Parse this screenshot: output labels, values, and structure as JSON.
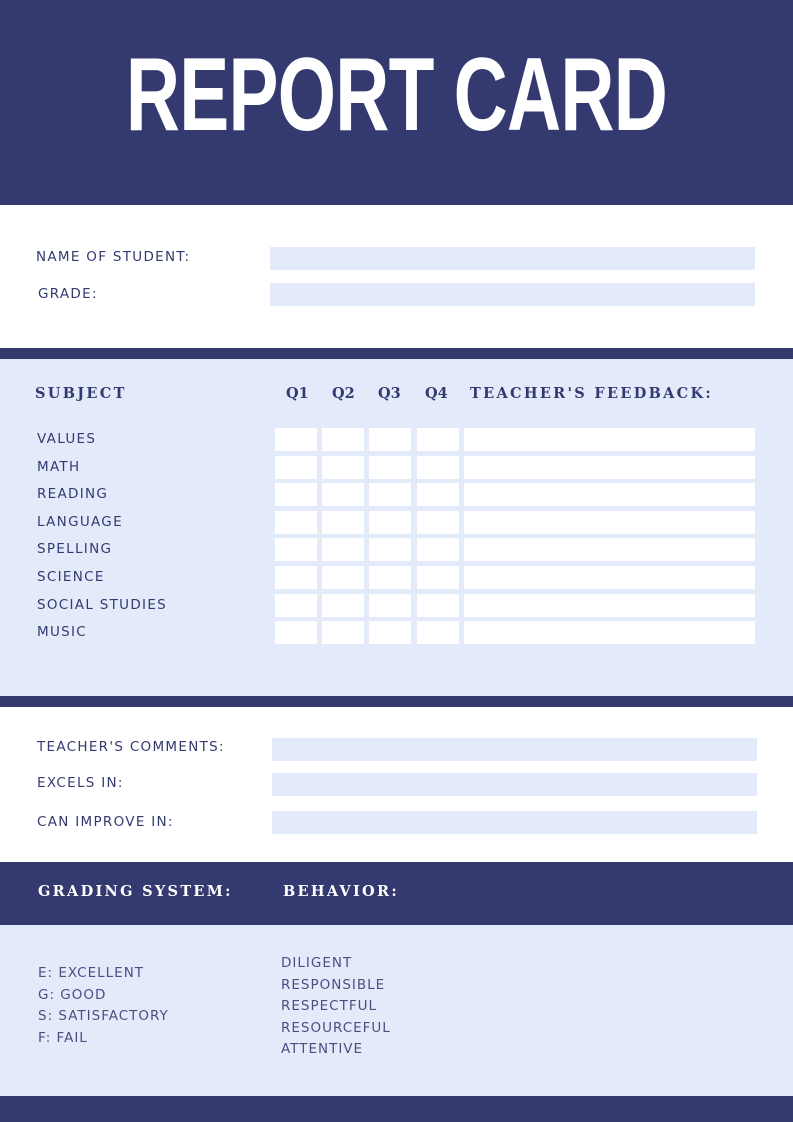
{
  "title": "REPORT CARD",
  "student": {
    "name_label": "NAME OF STUDENT:",
    "grade_label": "GRADE:"
  },
  "grades_table": {
    "headers": {
      "subject": "SUBJECT",
      "q1": "Q1",
      "q2": "Q2",
      "q3": "Q3",
      "q4": "Q4",
      "feedback": "TEACHER'S FEEDBACK:"
    },
    "subjects": [
      "VALUES",
      "MATH",
      "READING",
      "LANGUAGE",
      "SPELLING",
      "SCIENCE",
      "SOCIAL STUDIES",
      "MUSIC"
    ]
  },
  "comments": {
    "teacher_comments_label": "TEACHER'S COMMENTS:",
    "excels_label": "EXCELS IN:",
    "improve_label": "CAN IMPROVE IN:"
  },
  "grading": {
    "header": "GRADING SYSTEM:",
    "items": [
      "E: EXCELLENT",
      "G: GOOD",
      "S: SATISFACTORY",
      "F: FAIL"
    ]
  },
  "behavior": {
    "header": "BEHAVIOR:",
    "items": [
      "DILIGENT",
      "RESPONSIBLE",
      "RESPECTFUL",
      "RESOURCEFUL",
      "ATTENTIVE"
    ]
  },
  "colors": {
    "primary": "#343a70",
    "light": "#e3ebfb"
  }
}
